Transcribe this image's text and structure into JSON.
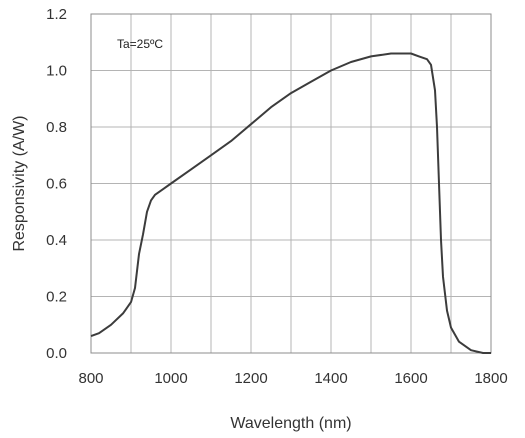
{
  "chart_data": {
    "type": "line",
    "title": "",
    "xlabel": "Wavelength (nm)",
    "ylabel": "Responsivity (A/W)",
    "xlim": [
      800,
      1800
    ],
    "ylim": [
      0.0,
      1.2
    ],
    "grid": true,
    "legend": "none",
    "x_ticks": [
      "800",
      "1000",
      "1200",
      "1400",
      "1600",
      "1800"
    ],
    "y_ticks": [
      "0.0",
      "0.2",
      "0.4",
      "0.6",
      "0.8",
      "1.0",
      "1.2"
    ],
    "annotation": "Ta=25ºC",
    "line_color": "#3c3c3c",
    "grid_color": "#b4b4b4",
    "series": [
      {
        "x": [
          800,
          820,
          850,
          880,
          900,
          910,
          920,
          930,
          940,
          950,
          960,
          980,
          1000,
          1050,
          1100,
          1150,
          1200,
          1250,
          1300,
          1350,
          1400,
          1450,
          1500,
          1550,
          1580,
          1600,
          1620,
          1640,
          1650,
          1660,
          1665,
          1670,
          1675,
          1680,
          1690,
          1700,
          1720,
          1750,
          1780,
          1800
        ],
        "y": [
          0.06,
          0.07,
          0.1,
          0.14,
          0.18,
          0.23,
          0.35,
          0.42,
          0.5,
          0.54,
          0.56,
          0.58,
          0.6,
          0.65,
          0.7,
          0.75,
          0.81,
          0.87,
          0.92,
          0.96,
          1.0,
          1.03,
          1.05,
          1.06,
          1.06,
          1.06,
          1.05,
          1.04,
          1.02,
          0.93,
          0.8,
          0.6,
          0.4,
          0.27,
          0.15,
          0.09,
          0.04,
          0.01,
          0.0,
          0.0
        ]
      }
    ]
  }
}
